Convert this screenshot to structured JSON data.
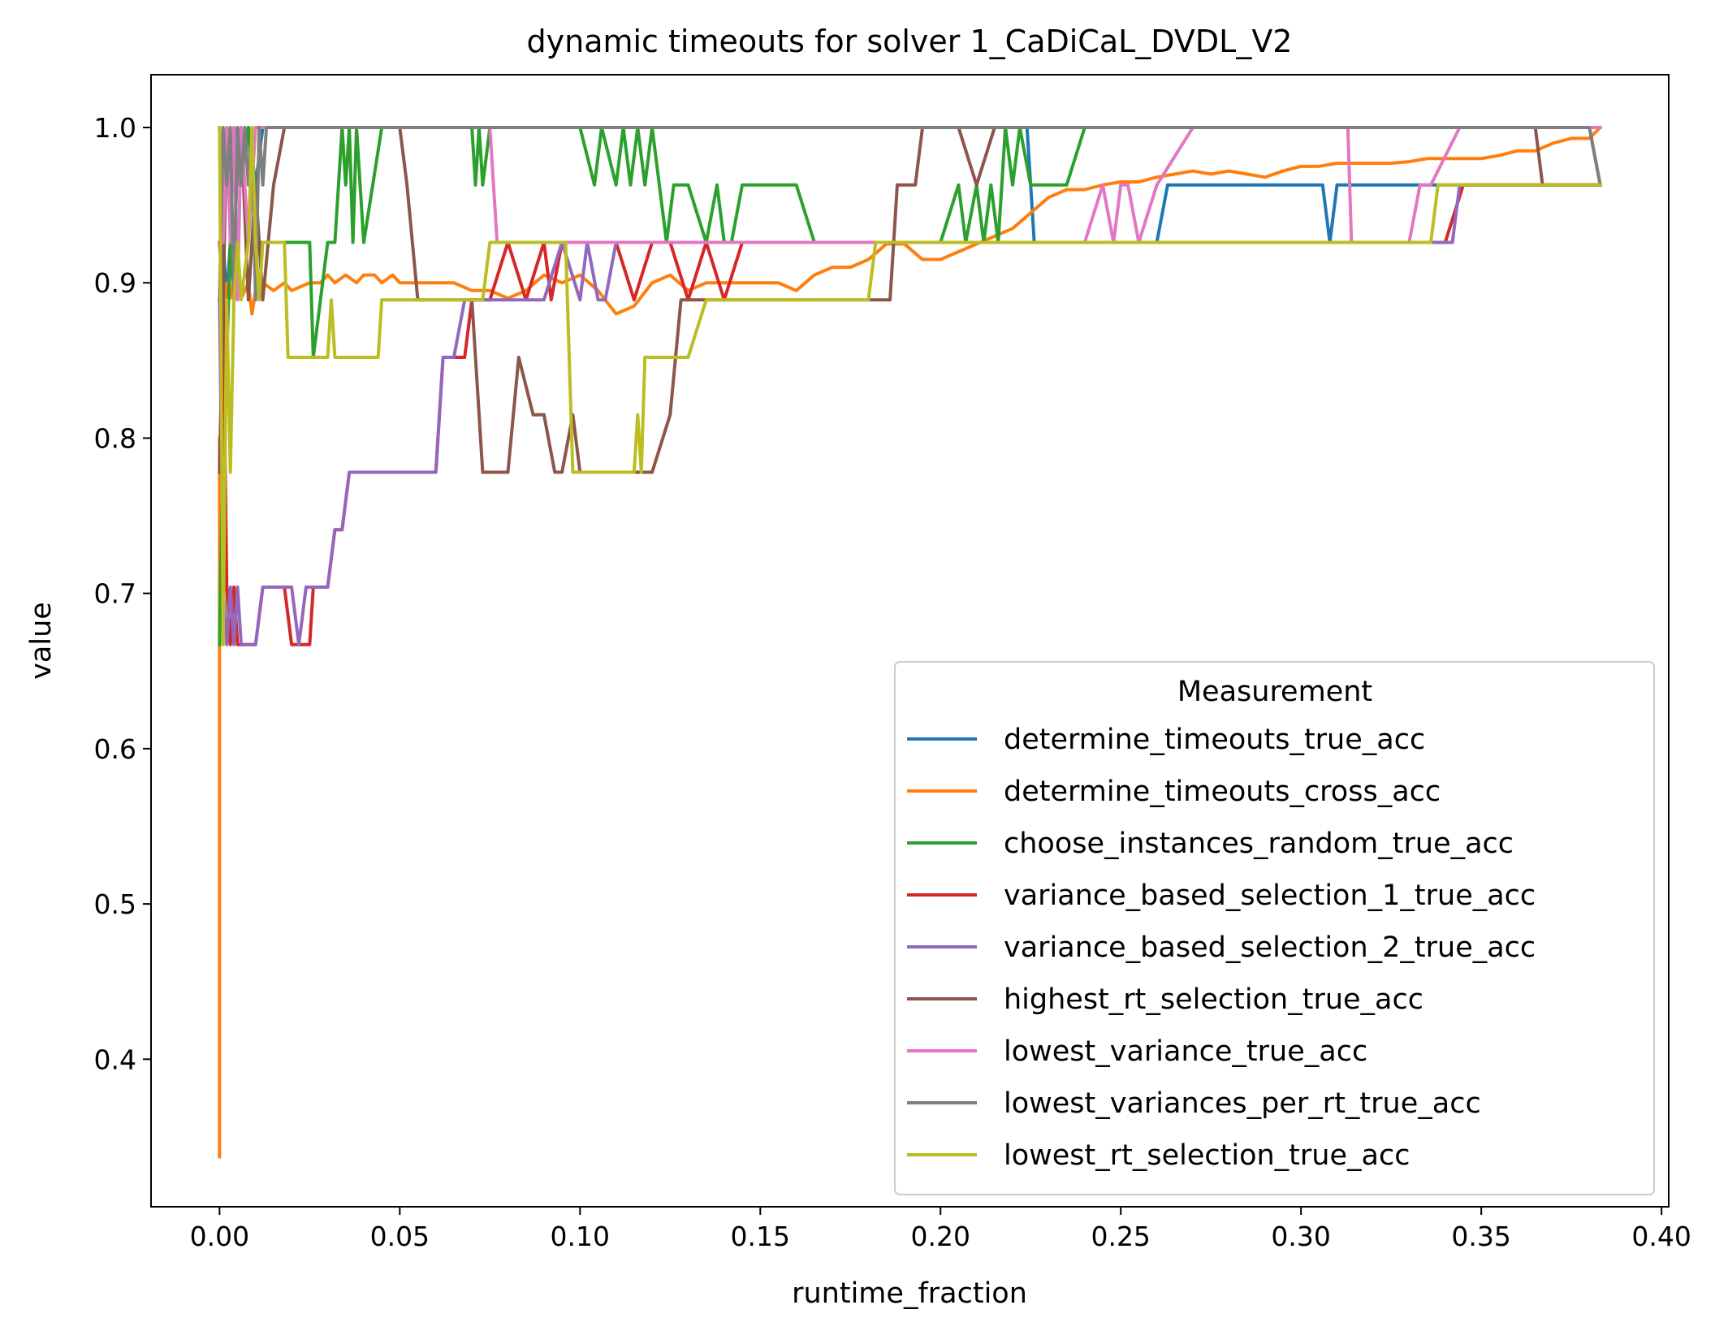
{
  "chart_data": {
    "type": "line",
    "title": "dynamic timeouts for solver 1_CaDiCaL_DVDL_V2",
    "xlabel": "runtime_fraction",
    "ylabel": "value",
    "xlim": [
      -0.019,
      0.402
    ],
    "ylim": [
      0.305,
      1.034
    ],
    "xticks": [
      0.0,
      0.05,
      0.1,
      0.15,
      0.2,
      0.25,
      0.3,
      0.35,
      0.4
    ],
    "xtick_labels": [
      "0.00",
      "0.05",
      "0.10",
      "0.15",
      "0.20",
      "0.25",
      "0.30",
      "0.35",
      "0.40"
    ],
    "yticks": [
      0.4,
      0.5,
      0.6,
      0.7,
      0.8,
      0.9,
      1.0
    ],
    "ytick_labels": [
      "0.4",
      "0.5",
      "0.6",
      "0.7",
      "0.8",
      "0.9",
      "1.0"
    ],
    "grid": false,
    "legend": {
      "title": "Measurement",
      "placement": "lower right"
    },
    "series": [
      {
        "name": "determine_timeouts_true_acc",
        "color": "#1f77b4",
        "x": [
          0.0,
          0.001,
          0.002,
          0.003,
          0.004,
          0.005,
          0.006,
          0.008,
          0.01,
          0.012,
          0.02,
          0.05,
          0.1,
          0.15,
          0.2,
          0.222,
          0.224,
          0.226,
          0.26,
          0.263,
          0.3,
          0.306,
          0.308,
          0.31,
          0.314,
          0.34,
          0.36,
          0.38,
          0.383
        ],
        "y": [
          0.889,
          0.926,
          0.889,
          0.926,
          0.889,
          1.0,
          0.963,
          1.0,
          0.963,
          1.0,
          1.0,
          1.0,
          1.0,
          1.0,
          1.0,
          1.0,
          1.0,
          0.926,
          0.926,
          0.963,
          0.963,
          0.963,
          0.926,
          0.963,
          0.963,
          0.963,
          0.963,
          0.963,
          0.963
        ]
      },
      {
        "name": "determine_timeouts_cross_acc",
        "color": "#ff7f0e",
        "x": [
          0.0,
          0.0,
          0.0,
          0.0005,
          0.001,
          0.002,
          0.003,
          0.004,
          0.006,
          0.008,
          0.009,
          0.01,
          0.012,
          0.015,
          0.018,
          0.02,
          0.025,
          0.028,
          0.03,
          0.032,
          0.035,
          0.038,
          0.04,
          0.043,
          0.045,
          0.048,
          0.05,
          0.055,
          0.06,
          0.065,
          0.07,
          0.075,
          0.08,
          0.085,
          0.09,
          0.095,
          0.1,
          0.105,
          0.11,
          0.115,
          0.12,
          0.125,
          0.13,
          0.135,
          0.14,
          0.145,
          0.15,
          0.155,
          0.16,
          0.165,
          0.17,
          0.175,
          0.18,
          0.185,
          0.19,
          0.195,
          0.2,
          0.205,
          0.21,
          0.215,
          0.22,
          0.225,
          0.23,
          0.235,
          0.24,
          0.245,
          0.25,
          0.255,
          0.26,
          0.265,
          0.27,
          0.275,
          0.28,
          0.285,
          0.29,
          0.295,
          0.3,
          0.305,
          0.31,
          0.315,
          0.32,
          0.325,
          0.33,
          0.335,
          0.34,
          0.345,
          0.35,
          0.355,
          0.36,
          0.365,
          0.37,
          0.375,
          0.38,
          0.383
        ],
        "y": [
          0.8,
          0.337,
          0.667,
          0.82,
          0.87,
          0.9,
          0.89,
          0.905,
          0.89,
          0.9,
          0.88,
          0.895,
          0.9,
          0.895,
          0.9,
          0.895,
          0.9,
          0.9,
          0.905,
          0.9,
          0.905,
          0.9,
          0.905,
          0.905,
          0.9,
          0.905,
          0.9,
          0.9,
          0.9,
          0.9,
          0.895,
          0.895,
          0.89,
          0.895,
          0.905,
          0.9,
          0.905,
          0.895,
          0.88,
          0.885,
          0.9,
          0.905,
          0.895,
          0.9,
          0.9,
          0.9,
          0.9,
          0.9,
          0.895,
          0.905,
          0.91,
          0.91,
          0.915,
          0.925,
          0.925,
          0.915,
          0.915,
          0.92,
          0.925,
          0.93,
          0.935,
          0.945,
          0.955,
          0.96,
          0.96,
          0.963,
          0.965,
          0.965,
          0.968,
          0.97,
          0.972,
          0.97,
          0.972,
          0.97,
          0.968,
          0.972,
          0.975,
          0.975,
          0.977,
          0.977,
          0.977,
          0.977,
          0.978,
          0.98,
          0.98,
          0.98,
          0.98,
          0.982,
          0.985,
          0.985,
          0.99,
          0.993,
          0.993,
          1.0
        ]
      },
      {
        "name": "choose_instances_random_true_acc",
        "color": "#2ca02c",
        "x": [
          0.0,
          0.001,
          0.002,
          0.003,
          0.004,
          0.006,
          0.008,
          0.01,
          0.012,
          0.015,
          0.018,
          0.02,
          0.025,
          0.026,
          0.028,
          0.03,
          0.032,
          0.034,
          0.035,
          0.036,
          0.037,
          0.038,
          0.04,
          0.045,
          0.05,
          0.06,
          0.07,
          0.071,
          0.072,
          0.073,
          0.075,
          0.08,
          0.085,
          0.09,
          0.1,
          0.104,
          0.106,
          0.11,
          0.112,
          0.114,
          0.116,
          0.118,
          0.12,
          0.122,
          0.124,
          0.126,
          0.13,
          0.135,
          0.138,
          0.14,
          0.142,
          0.145,
          0.148,
          0.15,
          0.16,
          0.165,
          0.17,
          0.18,
          0.19,
          0.2,
          0.205,
          0.207,
          0.21,
          0.212,
          0.214,
          0.216,
          0.218,
          0.22,
          0.222,
          0.225,
          0.23,
          0.235,
          0.24,
          0.25,
          0.3,
          0.35,
          0.38,
          0.383
        ],
        "y": [
          0.667,
          0.8,
          0.852,
          0.926,
          1.0,
          0.963,
          1.0,
          0.926,
          0.926,
          0.926,
          0.926,
          0.926,
          0.926,
          0.852,
          0.889,
          0.926,
          0.926,
          1.0,
          0.963,
          1.0,
          0.926,
          1.0,
          0.926,
          1.0,
          1.0,
          1.0,
          1.0,
          0.963,
          1.0,
          0.963,
          1.0,
          1.0,
          1.0,
          1.0,
          1.0,
          0.963,
          1.0,
          0.963,
          1.0,
          0.963,
          1.0,
          0.963,
          1.0,
          0.963,
          0.926,
          0.963,
          0.963,
          0.926,
          0.963,
          0.926,
          0.926,
          0.963,
          0.963,
          0.963,
          0.963,
          0.926,
          0.926,
          0.926,
          0.926,
          0.926,
          0.963,
          0.926,
          0.963,
          0.926,
          0.963,
          0.926,
          1.0,
          0.963,
          1.0,
          0.963,
          0.963,
          0.963,
          1.0,
          1.0,
          1.0,
          1.0,
          1.0,
          0.963
        ]
      },
      {
        "name": "variance_based_selection_1_true_acc",
        "color": "#d62728",
        "x": [
          0.0,
          0.001,
          0.002,
          0.003,
          0.004,
          0.005,
          0.006,
          0.01,
          0.012,
          0.015,
          0.016,
          0.018,
          0.02,
          0.022,
          0.024,
          0.025,
          0.026,
          0.028,
          0.03,
          0.032,
          0.034,
          0.036,
          0.04,
          0.05,
          0.06,
          0.062,
          0.065,
          0.068,
          0.07,
          0.072,
          0.075,
          0.08,
          0.085,
          0.09,
          0.092,
          0.095,
          0.1,
          0.105,
          0.11,
          0.115,
          0.12,
          0.125,
          0.13,
          0.135,
          0.14,
          0.145,
          0.15,
          0.16,
          0.17,
          0.18,
          0.2,
          0.25,
          0.3,
          0.34,
          0.345,
          0.36,
          0.38,
          0.383
        ],
        "y": [
          0.926,
          0.889,
          0.704,
          0.667,
          0.704,
          0.667,
          0.667,
          0.667,
          0.704,
          0.704,
          0.704,
          0.704,
          0.667,
          0.667,
          0.667,
          0.667,
          0.704,
          0.704,
          0.704,
          0.741,
          0.741,
          0.778,
          0.778,
          0.778,
          0.778,
          0.852,
          0.852,
          0.852,
          0.889,
          0.889,
          0.889,
          0.926,
          0.889,
          0.926,
          0.889,
          0.926,
          0.926,
          0.926,
          0.926,
          0.889,
          0.926,
          0.926,
          0.889,
          0.926,
          0.889,
          0.926,
          0.926,
          0.926,
          0.926,
          0.926,
          0.926,
          0.926,
          0.926,
          0.926,
          0.963,
          0.963,
          0.963,
          0.963
        ]
      },
      {
        "name": "variance_based_selection_2_true_acc",
        "color": "#9467bd",
        "x": [
          0.0,
          0.001,
          0.002,
          0.003,
          0.004,
          0.005,
          0.006,
          0.01,
          0.012,
          0.015,
          0.018,
          0.02,
          0.022,
          0.024,
          0.026,
          0.03,
          0.032,
          0.034,
          0.036,
          0.04,
          0.05,
          0.06,
          0.062,
          0.065,
          0.068,
          0.07,
          0.075,
          0.08,
          0.085,
          0.09,
          0.095,
          0.1,
          0.102,
          0.105,
          0.107,
          0.11,
          0.12,
          0.15,
          0.2,
          0.25,
          0.3,
          0.34,
          0.342,
          0.344,
          0.35,
          0.38,
          0.383
        ],
        "y": [
          0.889,
          0.704,
          0.667,
          0.704,
          0.667,
          0.704,
          0.667,
          0.667,
          0.704,
          0.704,
          0.704,
          0.704,
          0.667,
          0.704,
          0.704,
          0.704,
          0.741,
          0.741,
          0.778,
          0.778,
          0.778,
          0.778,
          0.852,
          0.852,
          0.889,
          0.889,
          0.889,
          0.889,
          0.889,
          0.889,
          0.926,
          0.889,
          0.926,
          0.889,
          0.889,
          0.926,
          0.926,
          0.926,
          0.926,
          0.926,
          0.926,
          0.926,
          0.926,
          0.963,
          0.963,
          0.963,
          0.963
        ]
      },
      {
        "name": "highest_rt_selection_true_acc",
        "color": "#8c564b",
        "x": [
          0.0,
          0.001,
          0.002,
          0.003,
          0.004,
          0.005,
          0.006,
          0.008,
          0.01,
          0.012,
          0.015,
          0.018,
          0.02,
          0.03,
          0.04,
          0.05,
          0.052,
          0.055,
          0.058,
          0.06,
          0.065,
          0.07,
          0.073,
          0.075,
          0.08,
          0.083,
          0.087,
          0.09,
          0.093,
          0.095,
          0.098,
          0.1,
          0.103,
          0.105,
          0.11,
          0.115,
          0.12,
          0.125,
          0.128,
          0.13,
          0.135,
          0.15,
          0.16,
          0.17,
          0.18,
          0.186,
          0.188,
          0.19,
          0.193,
          0.195,
          0.2,
          0.205,
          0.21,
          0.215,
          0.22,
          0.23,
          0.25,
          0.3,
          0.35,
          0.365,
          0.367,
          0.383
        ],
        "y": [
          0.778,
          0.889,
          1.0,
          0.963,
          1.0,
          0.963,
          1.0,
          0.889,
          0.963,
          0.889,
          0.963,
          1.0,
          1.0,
          1.0,
          1.0,
          1.0,
          0.963,
          0.889,
          0.889,
          0.889,
          0.889,
          0.889,
          0.778,
          0.778,
          0.778,
          0.852,
          0.815,
          0.815,
          0.778,
          0.778,
          0.815,
          0.778,
          0.778,
          0.778,
          0.778,
          0.778,
          0.778,
          0.815,
          0.889,
          0.889,
          0.889,
          0.889,
          0.889,
          0.889,
          0.889,
          0.889,
          0.963,
          0.963,
          0.963,
          1.0,
          1.0,
          1.0,
          0.963,
          1.0,
          1.0,
          1.0,
          1.0,
          1.0,
          1.0,
          1.0,
          0.963,
          0.963
        ]
      },
      {
        "name": "lowest_variance_true_acc",
        "color": "#e377c2",
        "x": [
          0.0,
          0.001,
          0.002,
          0.003,
          0.004,
          0.005,
          0.006,
          0.008,
          0.01,
          0.012,
          0.02,
          0.05,
          0.075,
          0.077,
          0.08,
          0.1,
          0.15,
          0.2,
          0.24,
          0.245,
          0.248,
          0.25,
          0.252,
          0.255,
          0.26,
          0.27,
          0.28,
          0.3,
          0.313,
          0.314,
          0.315,
          0.33,
          0.333,
          0.336,
          0.344,
          0.35,
          0.383
        ],
        "y": [
          1.0,
          0.926,
          1.0,
          0.926,
          1.0,
          0.889,
          1.0,
          0.926,
          1.0,
          1.0,
          1.0,
          1.0,
          1.0,
          0.926,
          0.926,
          0.926,
          0.926,
          0.926,
          0.926,
          0.963,
          0.926,
          0.963,
          0.963,
          0.926,
          0.963,
          1.0,
          1.0,
          1.0,
          1.0,
          0.926,
          0.926,
          0.926,
          0.963,
          0.963,
          1.0,
          1.0,
          1.0
        ]
      },
      {
        "name": "lowest_variances_per_rt_true_acc",
        "color": "#7f7f7f",
        "x": [
          0.0,
          0.001,
          0.002,
          0.003,
          0.004,
          0.005,
          0.006,
          0.007,
          0.008,
          0.009,
          0.01,
          0.011,
          0.012,
          0.013,
          0.015,
          0.02,
          0.05,
          0.1,
          0.15,
          0.2,
          0.25,
          0.3,
          0.35,
          0.38,
          0.383
        ],
        "y": [
          0.889,
          1.0,
          0.963,
          1.0,
          0.889,
          1.0,
          0.963,
          1.0,
          0.963,
          1.0,
          0.889,
          1.0,
          0.963,
          1.0,
          1.0,
          1.0,
          1.0,
          1.0,
          1.0,
          1.0,
          1.0,
          1.0,
          1.0,
          1.0,
          0.963
        ]
      },
      {
        "name": "lowest_rt_selection_true_acc",
        "color": "#bcbd22",
        "x": [
          0.0,
          0.001,
          0.002,
          0.003,
          0.004,
          0.005,
          0.006,
          0.008,
          0.009,
          0.01,
          0.011,
          0.012,
          0.015,
          0.018,
          0.019,
          0.02,
          0.025,
          0.03,
          0.031,
          0.032,
          0.04,
          0.044,
          0.045,
          0.046,
          0.05,
          0.06,
          0.07,
          0.073,
          0.075,
          0.08,
          0.09,
          0.096,
          0.097,
          0.098,
          0.1,
          0.11,
          0.115,
          0.116,
          0.117,
          0.118,
          0.12,
          0.125,
          0.13,
          0.135,
          0.14,
          0.15,
          0.16,
          0.17,
          0.18,
          0.182,
          0.185,
          0.19,
          0.2,
          0.25,
          0.3,
          0.336,
          0.338,
          0.35,
          0.383
        ],
        "y": [
          1.0,
          0.667,
          0.889,
          0.778,
          0.889,
          0.926,
          0.889,
          0.926,
          1.0,
          0.926,
          0.889,
          0.926,
          0.926,
          0.926,
          0.852,
          0.852,
          0.852,
          0.852,
          0.889,
          0.852,
          0.852,
          0.852,
          0.889,
          0.889,
          0.889,
          0.889,
          0.889,
          0.889,
          0.926,
          0.926,
          0.926,
          0.926,
          0.852,
          0.778,
          0.778,
          0.778,
          0.778,
          0.815,
          0.778,
          0.852,
          0.852,
          0.852,
          0.852,
          0.889,
          0.889,
          0.889,
          0.889,
          0.889,
          0.889,
          0.926,
          0.926,
          0.926,
          0.926,
          0.926,
          0.926,
          0.926,
          0.963,
          0.963,
          0.963
        ]
      }
    ]
  }
}
